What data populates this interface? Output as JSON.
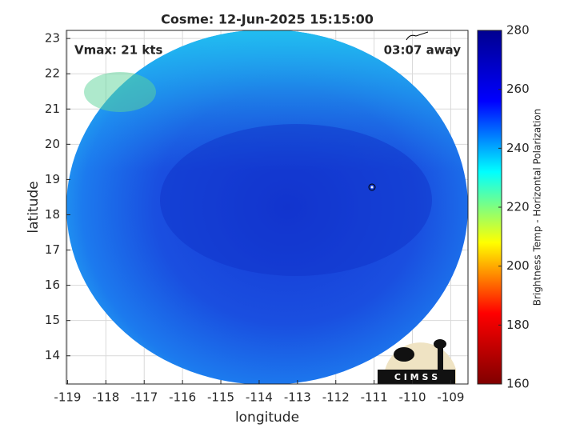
{
  "chart_data": {
    "type": "heatmap",
    "title": "Cosme: 12-Jun-2025 15:15:00",
    "xlabel": "longitude",
    "ylabel": "latitude",
    "annotations": [
      "Vmax: 21 kts",
      "03:07 away"
    ],
    "logo_text": "C I M S S",
    "xlim": [
      -119.03,
      -108.55
    ],
    "xticks": [
      -119,
      -118,
      -117,
      -116,
      -115,
      -114,
      -113,
      -112,
      -111,
      -110,
      -109
    ],
    "ylim": [
      13.2,
      23.23
    ],
    "yticks": [
      14,
      15,
      16,
      17,
      18,
      19,
      20,
      21,
      22,
      23
    ],
    "grid": true,
    "colorbar": {
      "label": "Brightness Temp - Horizontal Polarization",
      "lim": [
        160,
        280
      ],
      "ticks": [
        160,
        180,
        200,
        220,
        240,
        260,
        280
      ],
      "colors": [
        "#800000",
        "#ff0000",
        "#ffff00",
        "#00ffff",
        "#0000ff",
        "#00008f"
      ]
    }
  }
}
